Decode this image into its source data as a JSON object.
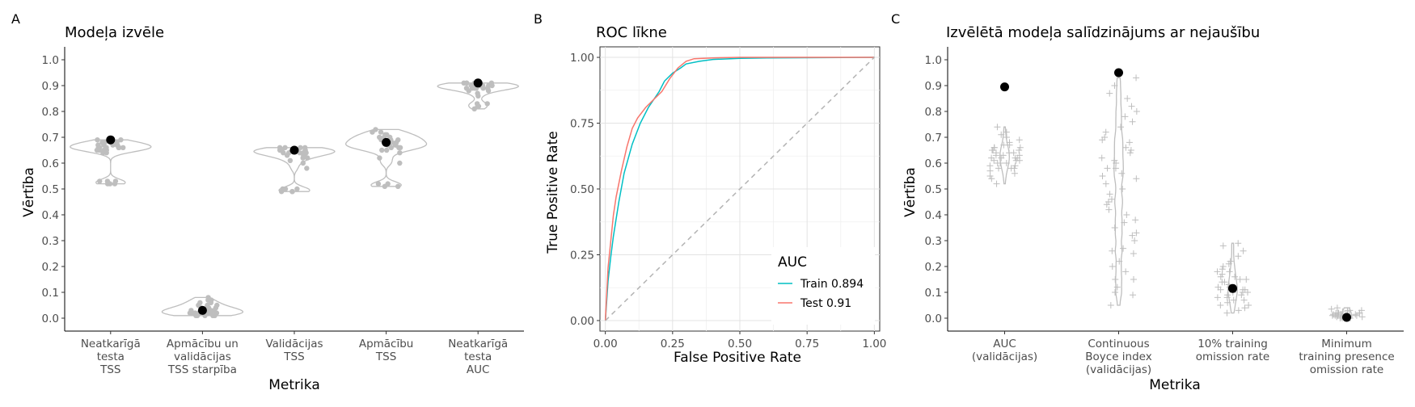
{
  "figure": {
    "panels": [
      {
        "letter": "A",
        "title": "Modeļa izvēle",
        "xlabel": "Metrika",
        "ylabel": "Vērtība"
      },
      {
        "letter": "B",
        "title": "ROC līkne",
        "xlabel": "False Positive Rate",
        "ylabel": "True Positive Rate"
      },
      {
        "letter": "C",
        "title": "Izvēlētā modeļa salīdzinājums ar nejaušību",
        "xlabel": "Metrika",
        "ylabel": "Vērtība"
      }
    ]
  },
  "chart_data": [
    {
      "type": "violin-jitter",
      "title": "Modeļa izvēle",
      "xlabel": "Metrika",
      "ylabel": "Vērtība",
      "ylim": [
        -0.05,
        1.05
      ],
      "yticks": [
        "0.0",
        "0.1",
        "0.2",
        "0.3",
        "0.4",
        "0.5",
        "0.6",
        "0.7",
        "0.8",
        "0.9",
        "1.0"
      ],
      "ytick_values": [
        0,
        0.1,
        0.2,
        0.3,
        0.4,
        0.5,
        0.6,
        0.7,
        0.8,
        0.9,
        1.0
      ],
      "grid": false,
      "colors": {
        "points": "#bebebe",
        "violin": "#bebebe",
        "selected": "#000000"
      },
      "categories": [
        {
          "label": [
            "Neatkarīgā",
            "testa",
            "TSS"
          ],
          "selected": 0.69,
          "points": [
            0.64,
            0.65,
            0.66,
            0.67,
            0.68,
            0.69,
            0.66,
            0.67,
            0.65,
            0.68,
            0.66,
            0.67,
            0.64,
            0.66,
            0.68,
            0.52,
            0.53,
            0.52,
            0.53,
            0.52,
            0.53,
            0.67,
            0.66,
            0.65,
            0.68,
            0.66,
            0.67,
            0.69,
            0.65,
            0.66
          ]
        },
        {
          "label": [
            "Apmācību un",
            "validācijas",
            "TSS starpība"
          ],
          "selected": 0.03,
          "points": [
            0.01,
            0.02,
            0.03,
            0.04,
            0.05,
            0.02,
            0.03,
            0.01,
            0.04,
            0.06,
            0.07,
            0.08,
            0.03,
            0.02,
            0.05,
            0.01,
            0.02,
            0.04,
            0.03,
            0.06,
            0.02,
            0.01,
            0.03,
            0.05,
            0.07,
            0.02,
            0.04,
            0.03,
            0.01,
            0.02
          ]
        },
        {
          "label": [
            "Validācijas",
            "TSS"
          ],
          "selected": 0.65,
          "points": [
            0.64,
            0.65,
            0.66,
            0.63,
            0.65,
            0.64,
            0.66,
            0.65,
            0.62,
            0.61,
            0.63,
            0.64,
            0.65,
            0.66,
            0.64,
            0.49,
            0.5,
            0.49,
            0.5,
            0.49,
            0.5,
            0.58,
            0.6,
            0.62,
            0.65,
            0.64,
            0.63,
            0.66,
            0.65,
            0.64
          ]
        },
        {
          "label": [
            "Apmācību",
            "TSS"
          ],
          "selected": 0.68,
          "points": [
            0.65,
            0.66,
            0.67,
            0.68,
            0.69,
            0.7,
            0.71,
            0.72,
            0.73,
            0.66,
            0.67,
            0.68,
            0.7,
            0.69,
            0.64,
            0.62,
            0.6,
            0.51,
            0.52,
            0.51,
            0.52,
            0.65,
            0.67,
            0.69,
            0.71,
            0.68,
            0.66,
            0.7,
            0.72,
            0.67
          ]
        },
        {
          "label": [
            "Neatkarīgā",
            "testa",
            "AUC"
          ],
          "selected": 0.91,
          "points": [
            0.89,
            0.9,
            0.91,
            0.9,
            0.89,
            0.91,
            0.9,
            0.88,
            0.87,
            0.86,
            0.89,
            0.9,
            0.91,
            0.9,
            0.89,
            0.82,
            0.83,
            0.81,
            0.82,
            0.83,
            0.9,
            0.91,
            0.89,
            0.9,
            0.88,
            0.9,
            0.91,
            0.89,
            0.9,
            0.89
          ]
        }
      ]
    },
    {
      "type": "line",
      "title": "ROC līkne",
      "xlabel": "False Positive Rate",
      "ylabel": "True Positive Rate",
      "xlim": [
        -0.02,
        1.02
      ],
      "ylim": [
        -0.04,
        1.04
      ],
      "xticks": [
        "0.00",
        "0.25",
        "0.50",
        "0.75",
        "1.00"
      ],
      "xtick_values": [
        0,
        0.25,
        0.5,
        0.75,
        1.0
      ],
      "yticks": [
        "0.00",
        "0.25",
        "0.50",
        "0.75",
        "1.00"
      ],
      "ytick_values": [
        0,
        0.25,
        0.5,
        0.75,
        1.0
      ],
      "grid": true,
      "legend": {
        "title": "AUC",
        "placement": "bottom-right"
      },
      "series": [
        {
          "name": "Train 0.894",
          "color": "#00bfc4",
          "x": [
            0,
            0.01,
            0.02,
            0.03,
            0.05,
            0.07,
            0.1,
            0.13,
            0.16,
            0.2,
            0.22,
            0.25,
            0.28,
            0.3,
            0.35,
            0.4,
            0.5,
            0.6,
            0.8,
            1.0
          ],
          "y": [
            0,
            0.15,
            0.24,
            0.32,
            0.45,
            0.56,
            0.67,
            0.75,
            0.81,
            0.87,
            0.91,
            0.94,
            0.96,
            0.975,
            0.985,
            0.992,
            0.996,
            0.998,
            0.999,
            1.0
          ]
        },
        {
          "name": "Test 0.91",
          "color": "#f8766d",
          "x": [
            0,
            0.01,
            0.02,
            0.03,
            0.04,
            0.06,
            0.08,
            0.1,
            0.12,
            0.15,
            0.18,
            0.21,
            0.24,
            0.27,
            0.3,
            0.33,
            0.4,
            0.5,
            0.7,
            1.0
          ],
          "y": [
            0,
            0.2,
            0.3,
            0.4,
            0.47,
            0.57,
            0.66,
            0.73,
            0.77,
            0.81,
            0.84,
            0.87,
            0.92,
            0.96,
            0.985,
            0.995,
            0.998,
            1.0,
            1.0,
            1.0
          ]
        },
        {
          "name": "",
          "color": "#b3b3b3",
          "dashed": true,
          "x": [
            0,
            1
          ],
          "y": [
            0,
            1
          ]
        }
      ]
    },
    {
      "type": "scatter-jitter",
      "title": "Izvēlētā modeļa salīdzinājums ar nejaušību",
      "xlabel": "Metrika",
      "ylabel": "Vērtība",
      "ylim": [
        -0.05,
        1.05
      ],
      "yticks": [
        "0.0",
        "0.1",
        "0.2",
        "0.3",
        "0.4",
        "0.5",
        "0.6",
        "0.7",
        "0.8",
        "0.9",
        "1.0"
      ],
      "ytick_values": [
        0,
        0.1,
        0.2,
        0.3,
        0.4,
        0.5,
        0.6,
        0.7,
        0.8,
        0.9,
        1.0
      ],
      "grid": false,
      "colors": {
        "points": "#bebebe",
        "violin": "#bebebe",
        "selected": "#000000"
      },
      "categories": [
        {
          "label": [
            "AUC",
            "(validācijas)"
          ],
          "selected": 0.895,
          "points": [
            0.52,
            0.54,
            0.55,
            0.56,
            0.57,
            0.58,
            0.58,
            0.59,
            0.6,
            0.6,
            0.61,
            0.61,
            0.62,
            0.62,
            0.62,
            0.63,
            0.63,
            0.64,
            0.64,
            0.65,
            0.65,
            0.66,
            0.66,
            0.67,
            0.68,
            0.69,
            0.7,
            0.71,
            0.72,
            0.74,
            0.6,
            0.62,
            0.64,
            0.66,
            0.58,
            0.63,
            0.61,
            0.67,
            0.59,
            0.65
          ]
        },
        {
          "label": [
            "Continuous",
            "Boyce index",
            "(validācijas)"
          ],
          "selected": 0.95,
          "points": [
            0.05,
            0.09,
            0.12,
            0.15,
            0.18,
            0.2,
            0.22,
            0.25,
            0.27,
            0.3,
            0.32,
            0.35,
            0.37,
            0.4,
            0.42,
            0.44,
            0.46,
            0.48,
            0.5,
            0.52,
            0.54,
            0.56,
            0.58,
            0.6,
            0.62,
            0.64,
            0.66,
            0.68,
            0.7,
            0.72,
            0.74,
            0.76,
            0.78,
            0.8,
            0.82,
            0.85,
            0.87,
            0.9,
            0.93,
            0.26,
            0.33,
            0.38,
            0.45,
            0.55,
            0.61,
            0.69,
            0.15,
            0.1,
            0.58,
            0.65
          ]
        },
        {
          "label": [
            "10% training",
            "omission rate"
          ],
          "selected": 0.115,
          "points": [
            0.02,
            0.03,
            0.04,
            0.05,
            0.06,
            0.07,
            0.08,
            0.09,
            0.1,
            0.1,
            0.11,
            0.11,
            0.12,
            0.12,
            0.13,
            0.13,
            0.14,
            0.15,
            0.16,
            0.17,
            0.18,
            0.19,
            0.2,
            0.21,
            0.22,
            0.24,
            0.26,
            0.28,
            0.29,
            0.08,
            0.12,
            0.15,
            0.05,
            0.1,
            0.18,
            0.14,
            0.09,
            0.11,
            0.16,
            0.07
          ]
        },
        {
          "label": [
            "Minimum",
            "training presence",
            "omission rate"
          ],
          "selected": 0.003,
          "points": [
            0,
            0,
            0,
            0.005,
            0.005,
            0.01,
            0.01,
            0.01,
            0.015,
            0.015,
            0.02,
            0.02,
            0.02,
            0.025,
            0.03,
            0.03,
            0.035,
            0.04,
            0,
            0.005,
            0.01,
            0.015,
            0.02,
            0.005,
            0.01,
            0.025,
            0.03,
            0,
            0.01,
            0.02
          ]
        }
      ]
    }
  ]
}
